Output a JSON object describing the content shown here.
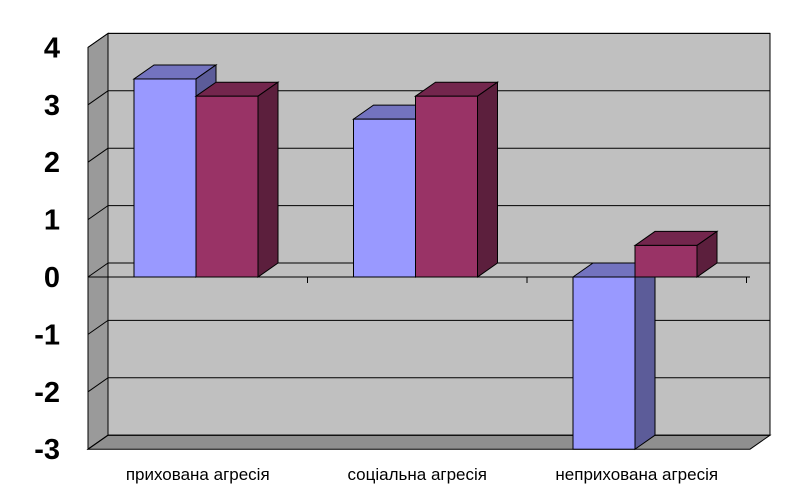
{
  "chart_data": {
    "type": "bar",
    "categories": [
      "прихована агресія",
      "соціальна агресія",
      "неприхована агресія"
    ],
    "series": [
      {
        "values": [
          3.45,
          2.75,
          -3.0
        ],
        "color": "#9999ff"
      },
      {
        "values": [
          3.15,
          3.15,
          0.55
        ],
        "color": "#993366"
      }
    ],
    "ylim": [
      -3,
      4
    ],
    "yticks": [
      "4",
      "3",
      "2",
      "1",
      "0",
      "-1",
      "-2",
      "-3"
    ],
    "yticks_values": [
      4,
      3,
      2,
      1,
      0,
      -1,
      -2,
      -3
    ],
    "grid": true,
    "three_d": true,
    "wall_color": "#c0c0c0"
  }
}
